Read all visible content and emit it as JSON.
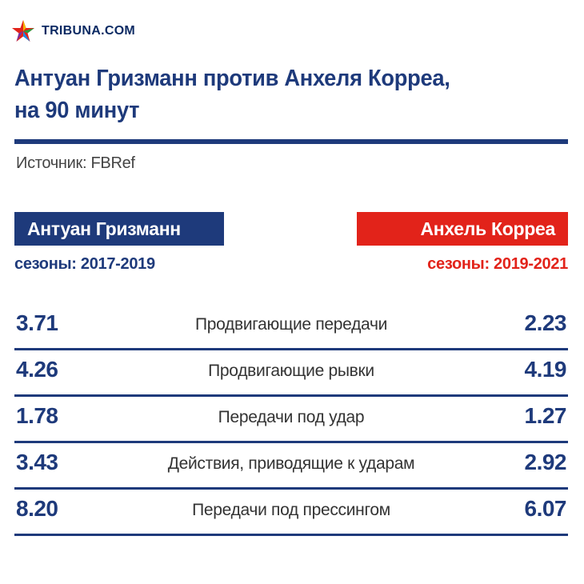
{
  "brand": {
    "name": "TRIBUNA.COM",
    "colors": {
      "navy": "#1e3a7b",
      "red": "#e2231a"
    }
  },
  "header": {
    "title_line1": "Антуан Гризманн против Анхеля Корреа,",
    "title_line2": "на 90 минут",
    "source": "Источник: FBRef"
  },
  "players": {
    "left": {
      "name": "Антуан Гризманн",
      "seasons": "сезоны: 2017-2019",
      "color": "#1e3a7b"
    },
    "right": {
      "name": "Анхель Корреа",
      "seasons": "сезоны: 2019-2021",
      "color": "#e2231a"
    }
  },
  "stats": [
    {
      "label": "Продвигающие передачи",
      "left": "3.71",
      "right": "2.23"
    },
    {
      "label": "Продвигающие рывки",
      "left": "4.26",
      "right": "4.19"
    },
    {
      "label": "Передачи под удар",
      "left": "1.78",
      "right": "1.27"
    },
    {
      "label": "Действия, приводящие к ударам",
      "left": "3.43",
      "right": "2.92"
    },
    {
      "label": "Передачи под прессингом",
      "left": "8.20",
      "right": "6.07"
    }
  ]
}
